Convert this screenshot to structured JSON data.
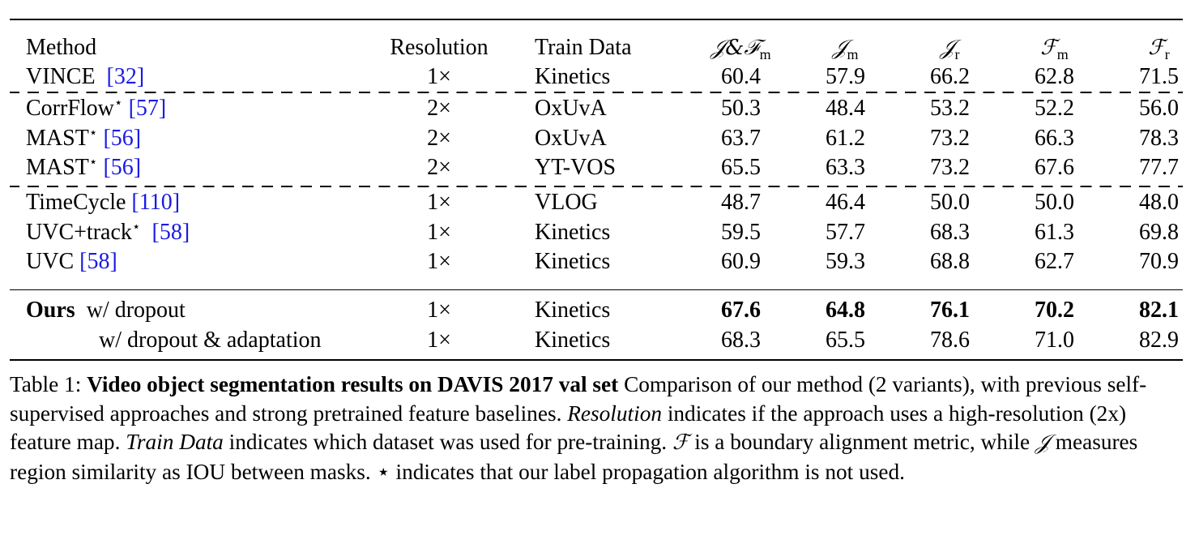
{
  "table": {
    "headers": {
      "method": "Method",
      "resolution": "Resolution",
      "train_data": "Train Data",
      "jf_m": {
        "sym": "𝒥&ℱ",
        "sub": "m"
      },
      "j_m": {
        "sym": "𝒥",
        "sub": "m"
      },
      "j_r": {
        "sym": "𝒥",
        "sub": "r"
      },
      "f_m": {
        "sym": "ℱ",
        "sub": "m"
      },
      "f_r": {
        "sym": "ℱ",
        "sub": "r"
      }
    },
    "groups": [
      [
        {
          "method": "VINCE",
          "star": "",
          "cite": "[32]",
          "resolution": "1×",
          "train_data": "Kinetics",
          "values": [
            "60.4",
            "57.9",
            "66.2",
            "62.8",
            "71.5"
          ]
        }
      ],
      [
        {
          "method": "CorrFlow",
          "star": "⋆",
          "cite": "[57]",
          "resolution": "2×",
          "train_data": "OxUvA",
          "values": [
            "50.3",
            "48.4",
            "53.2",
            "52.2",
            "56.0"
          ]
        },
        {
          "method": "MAST",
          "star": "⋆",
          "cite": "[56]",
          "resolution": "2×",
          "train_data": "OxUvA",
          "values": [
            "63.7",
            "61.2",
            "73.2",
            "66.3",
            "78.3"
          ]
        },
        {
          "method": "MAST",
          "star": "⋆",
          "cite": "[56]",
          "resolution": "2×",
          "train_data": "YT-VOS",
          "values": [
            "65.5",
            "63.3",
            "73.2",
            "67.6",
            "77.7"
          ]
        }
      ],
      [
        {
          "method": "TimeCycle",
          "star": "",
          "cite": "[110]",
          "resolution": "1×",
          "train_data": "VLOG",
          "values": [
            "48.7",
            "46.4",
            "50.0",
            "50.0",
            "48.0"
          ]
        },
        {
          "method": "UVC+track",
          "star": "⋆",
          "cite": "[58]",
          "resolution": "1×",
          "train_data": "Kinetics",
          "values": [
            "59.5",
            "57.7",
            "68.3",
            "61.3",
            "69.8"
          ]
        },
        {
          "method": "UVC",
          "star": "",
          "cite": "[58]",
          "resolution": "1×",
          "train_data": "Kinetics",
          "values": [
            "60.9",
            "59.3",
            "68.8",
            "62.7",
            "70.9"
          ]
        }
      ]
    ],
    "ours": [
      {
        "label_bold": "Ours",
        "variant": "w/ dropout",
        "resolution": "1×",
        "train_data": "Kinetics",
        "values": [
          "67.6",
          "64.8",
          "76.1",
          "70.2",
          "82.1"
        ],
        "bold_values": true
      },
      {
        "label_bold": "",
        "variant": "w/ dropout & adaptation",
        "resolution": "1×",
        "train_data": "Kinetics",
        "values": [
          "68.3",
          "65.5",
          "78.6",
          "71.0",
          "82.9"
        ],
        "bold_values": false
      }
    ]
  },
  "caption": {
    "prefix": "Table 1: ",
    "title": "Video object segmentation results on DAVIS 2017 val set",
    "t1": " Comparison of our method (2 variants), with previous self-supervised approaches and strong pretrained feature baselines. ",
    "res_term": "Resolution",
    "t2": " indicates if the approach uses a high-resolution (2x) feature map. ",
    "data_term": "Train Data",
    "t3": " indicates which dataset was used for pre-training. ",
    "f_sym": "ℱ",
    "t4": " is a boundary alignment metric, while ",
    "j_sym": "𝒥",
    "t5": " measures region similarity as IOU between masks. ",
    "star_sym": "⋆",
    "t6": " indicates that our label propagation algorithm is not used."
  }
}
